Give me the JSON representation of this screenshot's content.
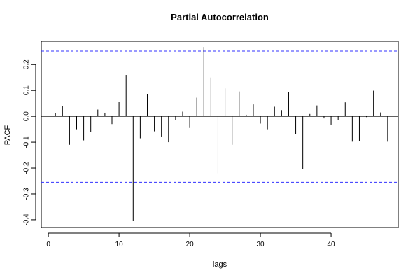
{
  "chart_data": {
    "type": "bar",
    "title": "Partial Autocorrelation",
    "xlabel": "lags",
    "ylabel": "PACF",
    "xlim": [
      -1,
      49.5
    ],
    "ylim": [
      -0.43,
      0.29
    ],
    "x_ticks": [
      0,
      10,
      20,
      30,
      40
    ],
    "y_ticks": [
      -0.4,
      -0.3,
      -0.2,
      -0.1,
      0.0,
      0.1,
      0.2
    ],
    "y_tick_labels": [
      "-0.4",
      "-0.3",
      "-0.2",
      "-0.1",
      "0.0",
      "0.1",
      "0.2"
    ],
    "confidence_band": [
      -0.255,
      0.252
    ],
    "band_color": "#3333ff",
    "bar_color": "#000000",
    "lags": [
      1,
      2,
      3,
      4,
      5,
      6,
      7,
      8,
      9,
      10,
      11,
      12,
      13,
      14,
      15,
      16,
      17,
      18,
      19,
      20,
      21,
      22,
      23,
      24,
      25,
      26,
      27,
      28,
      29,
      30,
      31,
      32,
      33,
      34,
      35,
      36,
      37,
      38,
      39,
      40,
      41,
      42,
      43,
      44,
      45,
      46,
      47,
      48
    ],
    "values": [
      0.013,
      0.04,
      -0.11,
      -0.05,
      -0.093,
      -0.06,
      0.026,
      0.014,
      -0.03,
      0.057,
      0.16,
      -0.405,
      -0.085,
      0.086,
      -0.058,
      -0.078,
      -0.1,
      -0.015,
      0.018,
      -0.045,
      0.072,
      0.268,
      0.15,
      -0.22,
      0.108,
      -0.11,
      0.096,
      0.006,
      0.046,
      -0.028,
      -0.05,
      0.037,
      0.024,
      0.094,
      -0.068,
      -0.205,
      0.009,
      0.042,
      -0.008,
      -0.032,
      -0.015,
      0.054,
      -0.098,
      -0.095,
      -0.003,
      0.099,
      0.015,
      -0.098
    ]
  }
}
